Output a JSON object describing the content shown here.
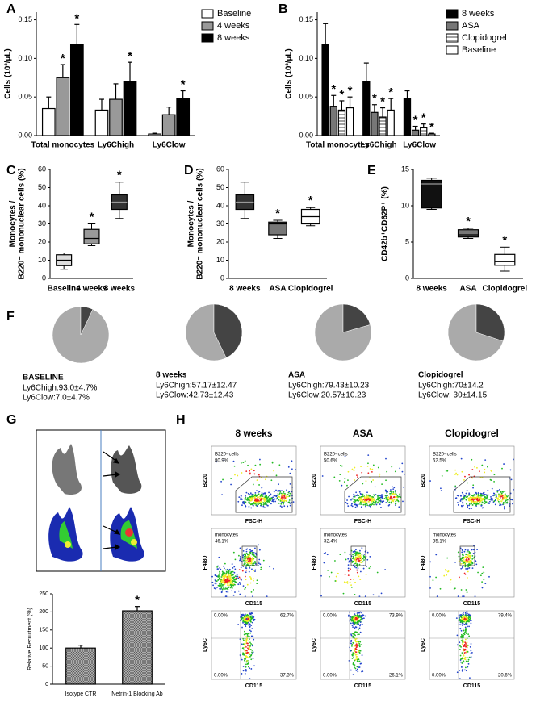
{
  "panels": [
    "A",
    "B",
    "C",
    "D",
    "E",
    "F",
    "G",
    "H"
  ],
  "chart_data": [
    {
      "type": "bar",
      "ylabel": "Cells (10³/µL)",
      "categories": [
        "Total monocytes",
        "Ly6Chigh",
        "Ly6Clow"
      ],
      "ylim": [
        0,
        0.16
      ],
      "yticks": [
        {
          "value": 0,
          "label": "0.00"
        },
        {
          "value": 0.05,
          "label": "0.05"
        },
        {
          "value": 0.1,
          "label": "0.10"
        },
        {
          "value": 0.15,
          "label": "0.15"
        }
      ],
      "legend": "right",
      "series": [
        {
          "name": "Baseline",
          "color": "#ffffff",
          "values": [
            0.035,
            0.033,
            0.002
          ],
          "errors": [
            0.015,
            0.014,
            0.001
          ],
          "stars": [
            null,
            null,
            null
          ]
        },
        {
          "name": "4 weeks",
          "color": "#999999",
          "values": [
            0.075,
            0.047,
            0.027
          ],
          "errors": [
            0.017,
            0.02,
            0.01
          ],
          "stars": [
            "*",
            null,
            null
          ]
        },
        {
          "name": "8 weeks",
          "color": "#000000",
          "values": [
            0.118,
            0.07,
            0.048
          ],
          "errors": [
            0.026,
            0.025,
            0.01
          ],
          "stars": [
            "*",
            "*",
            "*"
          ]
        }
      ]
    },
    {
      "type": "bar",
      "ylabel": "Cells (10³/µL)",
      "categories": [
        "Total monocytes",
        "Ly6Chigh",
        "Ly6Clow"
      ],
      "ylim": [
        0,
        0.16
      ],
      "yticks": [
        {
          "value": 0,
          "label": "0.00"
        },
        {
          "value": 0.05,
          "label": "0.05"
        },
        {
          "value": 0.1,
          "label": "0.10"
        },
        {
          "value": 0.15,
          "label": "0.15"
        }
      ],
      "legend": "right",
      "series": [
        {
          "name": "8 weeks",
          "color": "#000000",
          "values": [
            0.118,
            0.07,
            0.048
          ],
          "errors": [
            0.027,
            0.024,
            0.01
          ],
          "stars": [
            null,
            null,
            null
          ]
        },
        {
          "name": "ASA",
          "color": "#777777",
          "values": [
            0.038,
            0.03,
            0.007
          ],
          "errors": [
            0.014,
            0.01,
            0.005
          ],
          "stars": [
            "*",
            "*",
            "*"
          ]
        },
        {
          "name": "Clopidogrel",
          "color": "#dddddd",
          "pattern": "hatch",
          "values": [
            0.033,
            0.024,
            0.01
          ],
          "errors": [
            0.012,
            0.012,
            0.005
          ],
          "stars": [
            "*",
            "*",
            "*"
          ]
        },
        {
          "name": "Baseline",
          "color": "#ffffff",
          "values": [
            0.036,
            0.033,
            0.002
          ],
          "errors": [
            0.014,
            0.015,
            0.001
          ],
          "stars": [
            "*",
            "*",
            "*"
          ]
        }
      ]
    },
    {
      "type": "box",
      "ylabel": [
        "Monocytes /",
        "B220⁻ mononuclear cells (%)"
      ],
      "categories": [
        "Baseline",
        "4 weeks",
        "8 weeks"
      ],
      "ylim": [
        0,
        60
      ],
      "yticks": [
        0,
        10,
        20,
        30,
        40,
        50,
        60
      ],
      "boxes": [
        {
          "min": 5,
          "q1": 7,
          "median": 10,
          "q3": 13,
          "max": 14
        },
        {
          "min": 18,
          "q1": 19,
          "median": 22,
          "q3": 27,
          "max": 30
        },
        {
          "min": 33,
          "q1": 38,
          "median": 42,
          "q3": 46,
          "max": 53
        }
      ],
      "colors": [
        "#dddddd",
        "#999999",
        "#333333"
      ],
      "stars": [
        null,
        "*",
        "*"
      ]
    },
    {
      "type": "box",
      "ylabel": [
        "Monocytes /",
        "B220⁻ mononuclear cells (%)"
      ],
      "categories": [
        "8 weeks",
        "ASA",
        "Clopidogrel"
      ],
      "ylim": [
        0,
        60
      ],
      "yticks": [
        0,
        10,
        20,
        30,
        40,
        50,
        60
      ],
      "boxes": [
        {
          "min": 33,
          "q1": 38,
          "median": 42,
          "q3": 46,
          "max": 53
        },
        {
          "min": 22,
          "q1": 24,
          "median": 30,
          "q3": 31,
          "max": 32
        },
        {
          "min": 29,
          "q1": 30,
          "median": 34,
          "q3": 38,
          "max": 39
        }
      ],
      "colors": [
        "#333333",
        "#777777",
        "#ffffff"
      ],
      "stars": [
        null,
        "*",
        "*"
      ]
    },
    {
      "type": "box",
      "ylabel": [
        "CD42b⁺CD62P⁺ (%)"
      ],
      "categories": [
        "8 weeks",
        "ASA",
        "Clopidogrel"
      ],
      "ylim": [
        0,
        15
      ],
      "yticks": [
        0,
        5,
        10,
        15
      ],
      "boxes": [
        {
          "min": 9.5,
          "q1": 9.7,
          "median": 13,
          "q3": 13.5,
          "max": 13.8
        },
        {
          "min": 5.5,
          "q1": 5.7,
          "median": 6,
          "q3": 6.7,
          "max": 6.9
        },
        {
          "min": 1,
          "q1": 1.8,
          "median": 2.3,
          "q3": 3.3,
          "max": 4.3
        }
      ],
      "colors": [
        "#111111",
        "#777777",
        "#ffffff"
      ],
      "stars": [
        null,
        "*",
        "*"
      ]
    },
    {
      "type": "pie",
      "title": "BASELINE",
      "values": [
        93.0,
        7.0
      ],
      "colors": [
        "#aaaaaa",
        "#444444"
      ],
      "value_labels": [
        "Ly6Chigh:93.0±4.7%",
        "Ly6Clow:7.0±4.7%"
      ]
    },
    {
      "type": "pie",
      "title": "8 weeks",
      "values": [
        57.17,
        42.73
      ],
      "colors": [
        "#aaaaaa",
        "#444444"
      ],
      "value_labels": [
        "Ly6Chigh:57.17±12.47",
        "Ly6Clow:42.73±12.43"
      ]
    },
    {
      "type": "pie",
      "title": "ASA",
      "values": [
        79.43,
        20.57
      ],
      "colors": [
        "#aaaaaa",
        "#444444"
      ],
      "value_labels": [
        "Ly6Chigh:79.43±10.23",
        "Ly6Clow:20.57±10.23"
      ]
    },
    {
      "type": "pie",
      "title": "Clopidogrel",
      "values": [
        70,
        30
      ],
      "colors": [
        "#aaaaaa",
        "#444444"
      ],
      "value_labels": [
        "Ly6Chigh:70±14.2",
        "Ly6Clow: 30±14.15"
      ]
    },
    {
      "type": "bar",
      "ylabel": "Relative Recruitment (%)",
      "categories": [
        "Isotype CTR",
        "Netrin-1 Blocking Ab"
      ],
      "ylim": [
        0,
        250
      ],
      "yticks": [
        0,
        50,
        100,
        150,
        200,
        250
      ],
      "series": [
        {
          "color": "#aaaaaa",
          "pattern": "grid",
          "values": [
            100,
            203
          ],
          "errors": [
            8,
            12
          ],
          "stars": [
            null,
            "*"
          ]
        }
      ]
    }
  ],
  "flow": {
    "rows": [
      {
        "ylabel": "B220",
        "xlabel": "FSC-H",
        "gate": "B220- cells"
      },
      {
        "ylabel": "F4/80",
        "xlabel": "CD115",
        "gate": "monocytes"
      },
      {
        "ylabel": "Ly6C",
        "xlabel": "CD115"
      }
    ],
    "columns": [
      {
        "title": "8 weeks",
        "b220": "80.9%",
        "mono": "46.1%",
        "quadrants": [
          "0.00%",
          "62.7%",
          "0.00%",
          "37.3%"
        ]
      },
      {
        "title": "ASA",
        "b220": "50.6%",
        "mono": "32.4%",
        "quadrants": [
          "0.00%",
          "73.9%",
          "0.00%",
          "26.1%"
        ]
      },
      {
        "title": "Clopidogrel",
        "b220": "62.5%",
        "mono": "35.1%",
        "quadrants": [
          "0.00%",
          "79.4%",
          "0.00%",
          "20.6%"
        ]
      }
    ]
  }
}
